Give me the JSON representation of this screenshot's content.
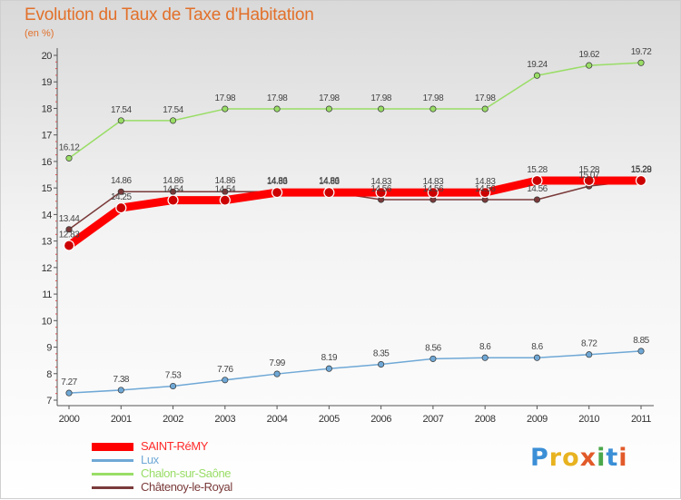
{
  "chart_data": {
    "type": "line",
    "title": "Evolution du Taux de Taxe d'Habitation",
    "ylabel": "(en %)",
    "xlabel": "",
    "x": [
      "2000",
      "2001",
      "2002",
      "2003",
      "2004",
      "2005",
      "2006",
      "2007",
      "2008",
      "2009",
      "2010",
      "2011"
    ],
    "ylim": [
      7,
      20
    ],
    "yticks": [
      "7",
      "8",
      "9",
      "10",
      "11",
      "12",
      "13",
      "14",
      "15",
      "16",
      "17",
      "18",
      "19",
      "20"
    ],
    "grid": false,
    "legend_position": "bottom-left",
    "series": [
      {
        "name": "SAINT-RéMY",
        "color": "#ff0000",
        "values": [
          12.83,
          14.25,
          14.54,
          14.54,
          14.83,
          14.83,
          14.83,
          14.83,
          14.83,
          15.28,
          15.28,
          15.28
        ],
        "labels": [
          "12.83",
          "14.25",
          "14.54",
          "14.54",
          "14.83",
          "14.83",
          "14.83",
          "14.83",
          "14.83",
          "15.28",
          "15.28",
          "15.28"
        ]
      },
      {
        "name": "Lux",
        "color": "#6fa8d6",
        "values": [
          7.27,
          7.38,
          7.53,
          7.76,
          7.99,
          8.19,
          8.35,
          8.56,
          8.6,
          8.6,
          8.72,
          8.85
        ],
        "labels": [
          "7.27",
          "7.38",
          "7.53",
          "7.76",
          "7.99",
          "8.19",
          "8.35",
          "8.56",
          "8.6",
          "8.6",
          "8.72",
          "8.85"
        ]
      },
      {
        "name": "Chalon-sur-Saône",
        "color": "#99dd66",
        "values": [
          16.12,
          17.54,
          17.54,
          17.98,
          17.98,
          17.98,
          17.98,
          17.98,
          17.98,
          19.24,
          19.62,
          19.72
        ],
        "labels": [
          "16.12",
          "17.54",
          "17.54",
          "17.98",
          "17.98",
          "17.98",
          "17.98",
          "17.98",
          "17.98",
          "19.24",
          "19.62",
          "19.72"
        ]
      },
      {
        "name": "Châtenoy-le-Royal",
        "color": "#7a3a3a",
        "values": [
          13.44,
          14.86,
          14.86,
          14.86,
          14.86,
          14.86,
          14.56,
          14.56,
          14.56,
          14.56,
          15.07,
          15.29
        ],
        "labels": [
          "13.44",
          "14.86",
          "14.86",
          "14.86",
          "14.86",
          "14.86",
          "14.56",
          "14.56",
          "14.56",
          "14.56",
          "15.07",
          "15.29"
        ]
      }
    ]
  },
  "logo": {
    "letters": [
      "P",
      "r",
      "o",
      "x",
      "i",
      "t",
      "i"
    ],
    "colors": [
      "#3b8fd6",
      "#e8b320",
      "#e8b320",
      "#e25a2a",
      "#4aa84a",
      "#3b8fd6",
      "#e25a2a"
    ]
  }
}
